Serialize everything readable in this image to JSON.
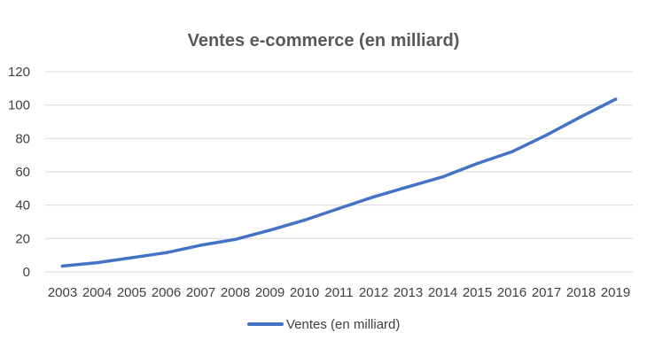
{
  "chart_data": {
    "type": "line",
    "title": "Ventes e-commerce (en milliard)",
    "xlabel": "",
    "ylabel": "",
    "categories": [
      "2003",
      "2004",
      "2005",
      "2006",
      "2007",
      "2008",
      "2009",
      "2010",
      "2011",
      "2012",
      "2013",
      "2014",
      "2015",
      "2016",
      "2017",
      "2018",
      "2019"
    ],
    "y_ticks": [
      "0",
      "20",
      "40",
      "60",
      "80",
      "100",
      "120"
    ],
    "ylim": [
      0,
      120
    ],
    "grid": "horizontal",
    "legend_position": "bottom",
    "series": [
      {
        "name": "Ventes (en milliard)",
        "color": "#4472C4",
        "values": [
          3.5,
          5.5,
          8.5,
          11.5,
          16,
          19.5,
          25,
          31,
          38,
          45,
          51,
          57,
          65,
          72,
          82,
          93,
          103.5
        ]
      }
    ]
  }
}
